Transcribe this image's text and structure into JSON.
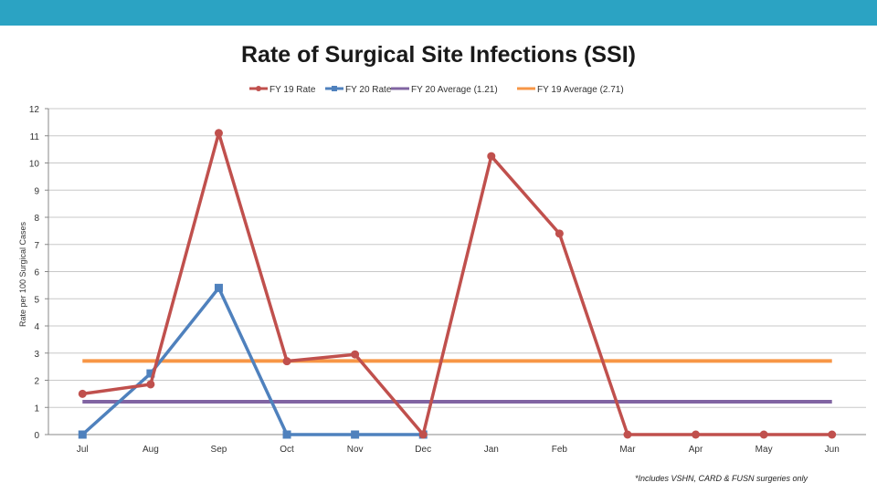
{
  "header": {
    "bar_color": "#2ba3c3"
  },
  "footnote": "*Includes VSHN, CARD & FUSN surgeries only",
  "chart_data": {
    "type": "line",
    "title": "Rate of Surgical Site Infections (SSI)",
    "xlabel": "",
    "ylabel": "Rate per 100 Surgical Cases",
    "categories": [
      "Jul",
      "Aug",
      "Sep",
      "Oct",
      "Nov",
      "Dec",
      "Jan",
      "Feb",
      "Mar",
      "Apr",
      "May",
      "Jun"
    ],
    "ylim": [
      0,
      12
    ],
    "yticks": [
      0,
      1,
      2,
      3,
      4,
      5,
      6,
      7,
      8,
      9,
      10,
      11,
      12
    ],
    "grid": true,
    "legend_position": "top-center",
    "series": [
      {
        "name": "FY 19 Rate",
        "color": "#c0504d",
        "marker": "circle",
        "values": [
          1.5,
          1.85,
          11.1,
          2.7,
          2.95,
          0,
          10.25,
          7.4,
          0,
          0,
          0,
          0
        ]
      },
      {
        "name": "FY 20 Rate",
        "color": "#4f81bd",
        "marker": "square",
        "values": [
          0,
          2.25,
          5.4,
          0,
          0,
          0,
          null,
          null,
          null,
          null,
          null,
          null
        ]
      },
      {
        "name": "FY 20 Average (1.21)",
        "color": "#8064a2",
        "marker": "none",
        "values": [
          1.21,
          1.21,
          1.21,
          1.21,
          1.21,
          1.21,
          1.21,
          1.21,
          1.21,
          1.21,
          1.21,
          1.21
        ]
      },
      {
        "name": "FY 19 Average (2.71)",
        "color": "#f79646",
        "marker": "none",
        "values": [
          2.71,
          2.71,
          2.71,
          2.71,
          2.71,
          2.71,
          2.71,
          2.71,
          2.71,
          2.71,
          2.71,
          2.71
        ]
      }
    ],
    "draw_order": [
      2,
      3,
      1,
      0
    ]
  }
}
